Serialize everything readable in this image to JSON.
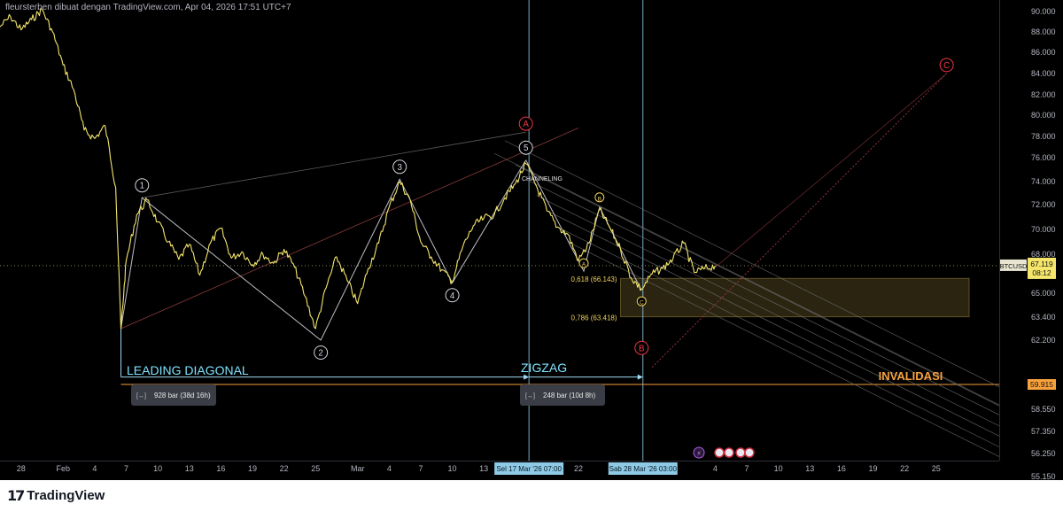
{
  "header": {
    "caption": "fleursterben dibuat dengan TradingView.com, Apr 04, 2026 17:51 UTC+7"
  },
  "footer": {
    "brand": "TradingView",
    "logo_mark": "17"
  },
  "colors": {
    "price_line": "#f5e66b",
    "wave_line": "#d1d4dc",
    "red": "#f23645",
    "orange": "#f7a13d",
    "cyan_text": "#7fe3ff",
    "fib_text": "#f0d060",
    "vline": "#8ecae6"
  },
  "chart_data": {
    "type": "line",
    "symbol": "BTCUSD",
    "last_price": "67.119",
    "countdown": "08:12",
    "ylim": [
      54500,
      91500
    ],
    "y_ticks": [
      "90.000",
      "88.000",
      "86.000",
      "84.000",
      "82.000",
      "80.000",
      "78.000",
      "76.000",
      "74.000",
      "72.000",
      "70.000",
      "68.000",
      "65.000",
      "63.400",
      "62.200",
      "59.915",
      "58.550",
      "57.350",
      "56.250",
      "55.150"
    ],
    "y_tick_values": [
      90000,
      88000,
      86000,
      84000,
      82000,
      80000,
      78000,
      76000,
      74000,
      72000,
      70000,
      68000,
      65000,
      63400,
      62200,
      59915,
      58550,
      57350,
      56250,
      55150
    ],
    "x_ticks": [
      "28",
      "Feb",
      "4",
      "7",
      "10",
      "13",
      "16",
      "19",
      "22",
      "25",
      "Mar",
      "4",
      "7",
      "10",
      "13",
      "22",
      "4",
      "7",
      "10",
      "13",
      "16",
      "19",
      "22",
      "25"
    ],
    "x_tick_values": [
      "2026-01-28",
      "2026-02-01",
      "2026-02-04",
      "2026-02-07",
      "2026-02-10",
      "2026-02-13",
      "2026-02-16",
      "2026-02-19",
      "2026-02-22",
      "2026-02-25",
      "2026-03-01",
      "2026-03-04",
      "2026-03-07",
      "2026-03-10",
      "2026-03-13",
      "2026-03-22",
      "2026-04-04",
      "2026-04-07",
      "2026-04-10",
      "2026-04-13",
      "2026-04-16",
      "2026-04-19",
      "2026-04-22",
      "2026-04-25"
    ],
    "x_range": [
      "2026-01-26",
      "2026-05-01"
    ],
    "price_path": [
      [
        "2026-01-26",
        88500
      ],
      [
        "2026-01-27",
        89500
      ],
      [
        "2026-01-28",
        88200
      ],
      [
        "2026-01-29",
        89200
      ],
      [
        "2026-01-30",
        90200
      ],
      [
        "2026-01-31",
        88000
      ],
      [
        "2026-02-01",
        84800
      ],
      [
        "2026-02-02",
        82500
      ],
      [
        "2026-02-03",
        78600
      ],
      [
        "2026-02-04",
        77800
      ],
      [
        "2026-02-05",
        79000
      ],
      [
        "2026-02-06",
        73500
      ],
      [
        "2026-02-06T12",
        62800
      ],
      [
        "2026-02-07",
        67500
      ],
      [
        "2026-02-08",
        71200
      ],
      [
        "2026-02-09",
        72400
      ],
      [
        "2026-02-10",
        70600
      ],
      [
        "2026-02-11",
        69000
      ],
      [
        "2026-02-12",
        67600
      ],
      [
        "2026-02-13",
        68800
      ],
      [
        "2026-02-14",
        66400
      ],
      [
        "2026-02-15",
        68900
      ],
      [
        "2026-02-16",
        70100
      ],
      [
        "2026-02-17",
        67700
      ],
      [
        "2026-02-18",
        68200
      ],
      [
        "2026-02-19",
        67200
      ],
      [
        "2026-02-20",
        68000
      ],
      [
        "2026-02-21",
        67300
      ],
      [
        "2026-02-22",
        68400
      ],
      [
        "2026-02-23",
        67000
      ],
      [
        "2026-02-24",
        64800
      ],
      [
        "2026-02-25",
        62800
      ],
      [
        "2026-02-26",
        65400
      ],
      [
        "2026-02-27",
        67800
      ],
      [
        "2026-02-28",
        66000
      ],
      [
        "2026-03-01",
        64300
      ],
      [
        "2026-03-02",
        66900
      ],
      [
        "2026-03-03",
        68900
      ],
      [
        "2026-03-04",
        71800
      ],
      [
        "2026-03-05",
        74000
      ],
      [
        "2026-03-06",
        72400
      ],
      [
        "2026-03-07",
        69000
      ],
      [
        "2026-03-08",
        67800
      ],
      [
        "2026-03-09",
        66800
      ],
      [
        "2026-03-10",
        65900
      ],
      [
        "2026-03-11",
        68600
      ],
      [
        "2026-03-12",
        70300
      ],
      [
        "2026-03-13",
        70900
      ],
      [
        "2026-03-14",
        71200
      ],
      [
        "2026-03-15",
        72600
      ],
      [
        "2026-03-16",
        73800
      ],
      [
        "2026-03-17",
        75500
      ],
      [
        "2026-03-18",
        73600
      ],
      [
        "2026-03-19",
        71500
      ],
      [
        "2026-03-20",
        70200
      ],
      [
        "2026-03-21",
        69600
      ],
      [
        "2026-03-22",
        67500
      ],
      [
        "2026-03-23",
        68900
      ],
      [
        "2026-03-24",
        71600
      ],
      [
        "2026-03-25",
        70100
      ],
      [
        "2026-03-26",
        68400
      ],
      [
        "2026-03-27",
        66200
      ],
      [
        "2026-03-28",
        65300
      ],
      [
        "2026-03-29",
        66500
      ],
      [
        "2026-03-30",
        66900
      ],
      [
        "2026-03-31",
        67700
      ],
      [
        "2026-04-01",
        68900
      ],
      [
        "2026-04-02",
        66600
      ],
      [
        "2026-04-03",
        66900
      ],
      [
        "2026-04-04",
        67119
      ]
    ],
    "labels": {
      "leading_diagonal": "LEADING DIAGONAL",
      "zigzag": "ZIGZAG",
      "invalidasi": "INVALIDASI",
      "channeling": "CHANNELING",
      "fib_618": "0,618 (66.143)",
      "fib_786": "0,786 (63.418)",
      "bar_count_1": "928 bar (38d 16h)",
      "bar_count_2": "248 bar (10d 8h)",
      "time_label_1": "Sel 17 Mar '26  07:00",
      "time_label_2": "Sab 28 Mar '26  03:00",
      "invalidation_price": "59.915"
    },
    "fib_levels": [
      {
        "label": "0,618 (66.143)",
        "price": 66143
      },
      {
        "label": "0,786 (63.418)",
        "price": 63418
      }
    ],
    "invalidation": 59915,
    "wave_points": [
      {
        "label": "1",
        "x": "2026-02-08T12",
        "y": 72600
      },
      {
        "label": "2",
        "x": "2026-02-25T12",
        "y": 62200
      },
      {
        "label": "3",
        "x": "2026-03-05",
        "y": 74200
      },
      {
        "label": "4",
        "x": "2026-03-10",
        "y": 65800
      },
      {
        "label": "5",
        "x": "2026-03-17",
        "y": 75800
      }
    ],
    "abc_points": [
      {
        "label": "A",
        "x": "2026-03-22T12",
        "y": 66700
      },
      {
        "label": "B",
        "x": "2026-03-24",
        "y": 71800
      },
      {
        "label": "C",
        "x": "2026-03-28",
        "y": 65200
      }
    ],
    "big_labels": [
      {
        "label": "A",
        "x": "2026-03-17",
        "y": 79200
      },
      {
        "label": "B",
        "x": "2026-03-28",
        "y": 61800
      },
      {
        "label": "C",
        "x": "2026-04-26",
        "y": 84800
      }
    ]
  }
}
